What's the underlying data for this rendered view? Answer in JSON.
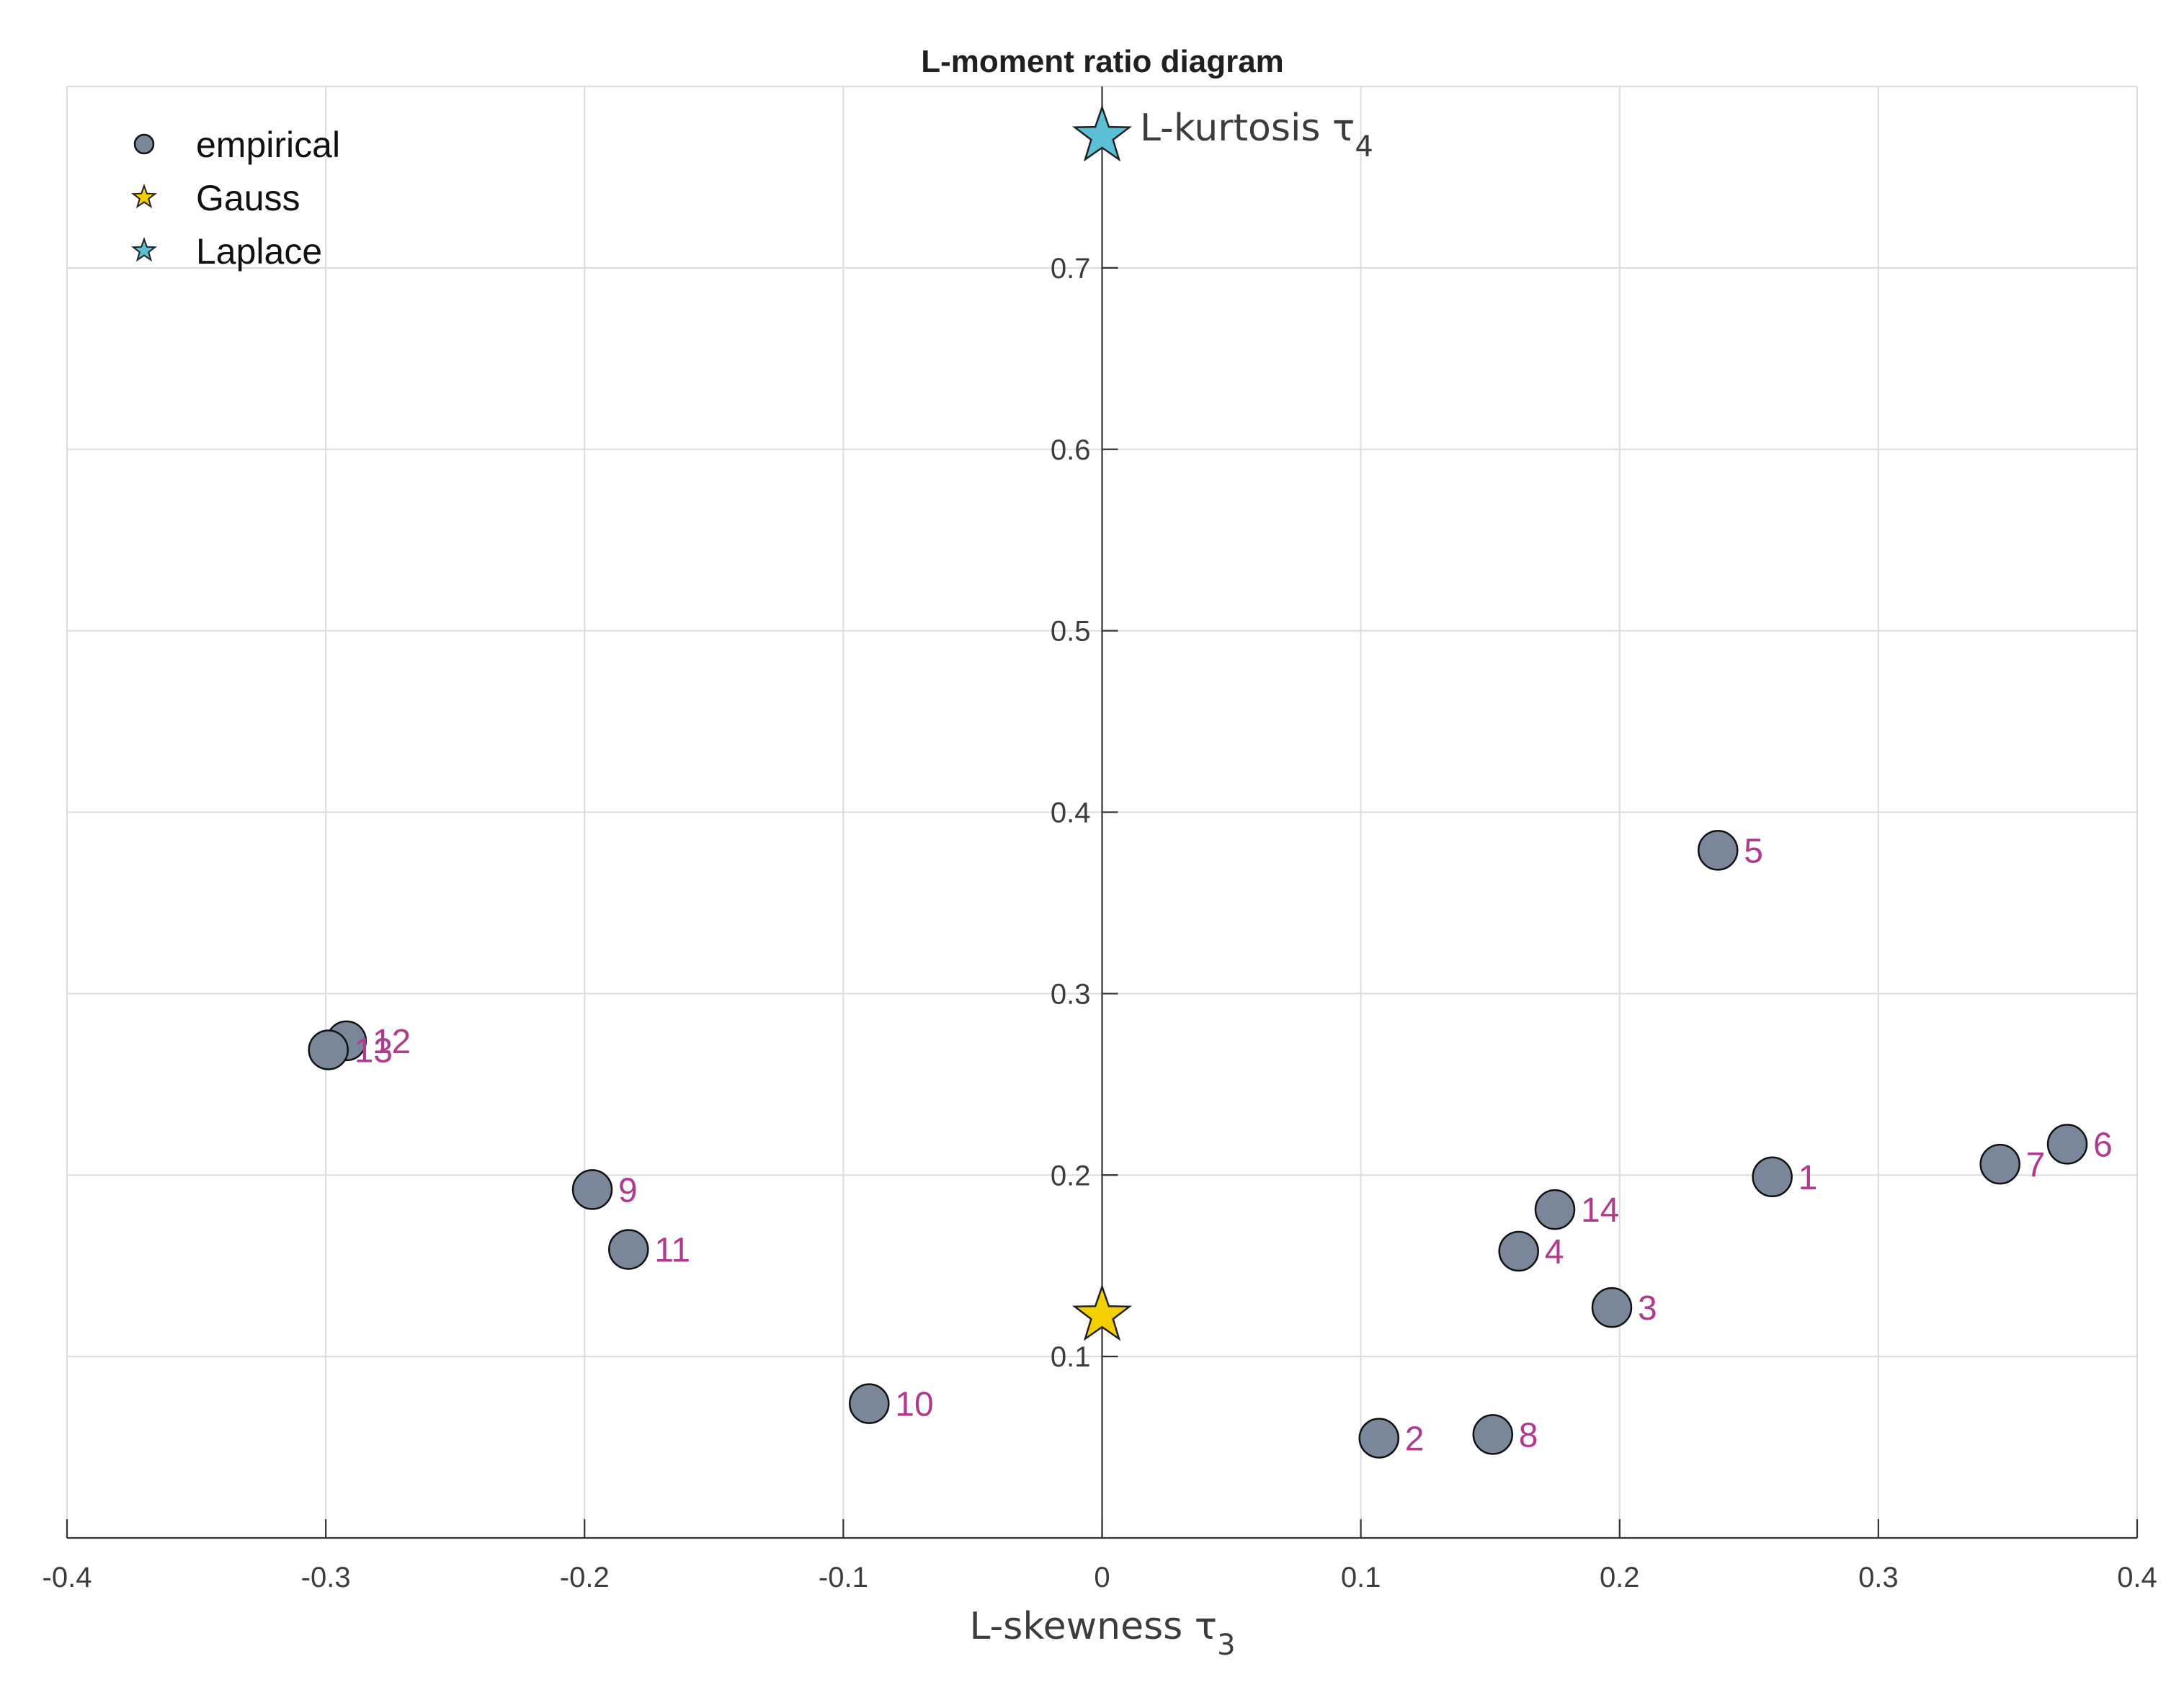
{
  "chart_data": {
    "type": "scatter",
    "title": "L-moment ratio diagram",
    "xlabel": "L-skewness τ",
    "xlabel_subscript": "3",
    "ylabel": "L-kurtosis τ",
    "ylabel_subscript": "4",
    "xlim": [
      -0.4,
      0.4
    ],
    "ylim": [
      0.0,
      0.8
    ],
    "xticks": [
      "-0.4",
      "-0.3",
      "-0.2",
      "-0.1",
      "0",
      "0.1",
      "0.2",
      "0.3",
      "0.4"
    ],
    "xtick_values": [
      -0.4,
      -0.3,
      -0.2,
      -0.1,
      0,
      0.1,
      0.2,
      0.3,
      0.4
    ],
    "yticks": [
      "0.1",
      "0.2",
      "0.3",
      "0.4",
      "0.5",
      "0.6",
      "0.7"
    ],
    "ytick_values": [
      0.1,
      0.2,
      0.3,
      0.4,
      0.5,
      0.6,
      0.7
    ],
    "grid": true,
    "legend_position": "top-left",
    "legend": [
      {
        "label": "empirical",
        "marker": "circle",
        "color": "#7a8699"
      },
      {
        "label": "Gauss",
        "marker": "star",
        "color": "#f5d000"
      },
      {
        "label": "Laplace",
        "marker": "star",
        "color": "#5bc0d6"
      }
    ],
    "series": [
      {
        "name": "empirical",
        "marker": "circle",
        "color": "#7a8699",
        "label_color": "#b03a8e",
        "points": [
          {
            "label": "1",
            "x": 0.259,
            "y": 0.199
          },
          {
            "label": "2",
            "x": 0.107,
            "y": 0.055
          },
          {
            "label": "3",
            "x": 0.197,
            "y": 0.127
          },
          {
            "label": "4",
            "x": 0.161,
            "y": 0.158
          },
          {
            "label": "5",
            "x": 0.238,
            "y": 0.379
          },
          {
            "label": "6",
            "x": 0.373,
            "y": 0.217
          },
          {
            "label": "7",
            "x": 0.347,
            "y": 0.206
          },
          {
            "label": "8",
            "x": 0.151,
            "y": 0.057
          },
          {
            "label": "9",
            "x": -0.197,
            "y": 0.192
          },
          {
            "label": "10",
            "x": -0.09,
            "y": 0.074
          },
          {
            "label": "11",
            "x": -0.183,
            "y": 0.159
          },
          {
            "label": "12",
            "x": -0.292,
            "y": 0.274
          },
          {
            "label": "13",
            "x": -0.299,
            "y": 0.269
          },
          {
            "label": "14",
            "x": 0.175,
            "y": 0.181
          }
        ]
      },
      {
        "name": "Gauss",
        "marker": "star",
        "color": "#f5d000",
        "points": [
          {
            "x": 0.0,
            "y": 0.1226
          }
        ]
      },
      {
        "name": "Laplace",
        "marker": "star",
        "color": "#5bc0d6",
        "points": [
          {
            "x": 0.0,
            "y": 0.7726
          }
        ]
      }
    ]
  }
}
